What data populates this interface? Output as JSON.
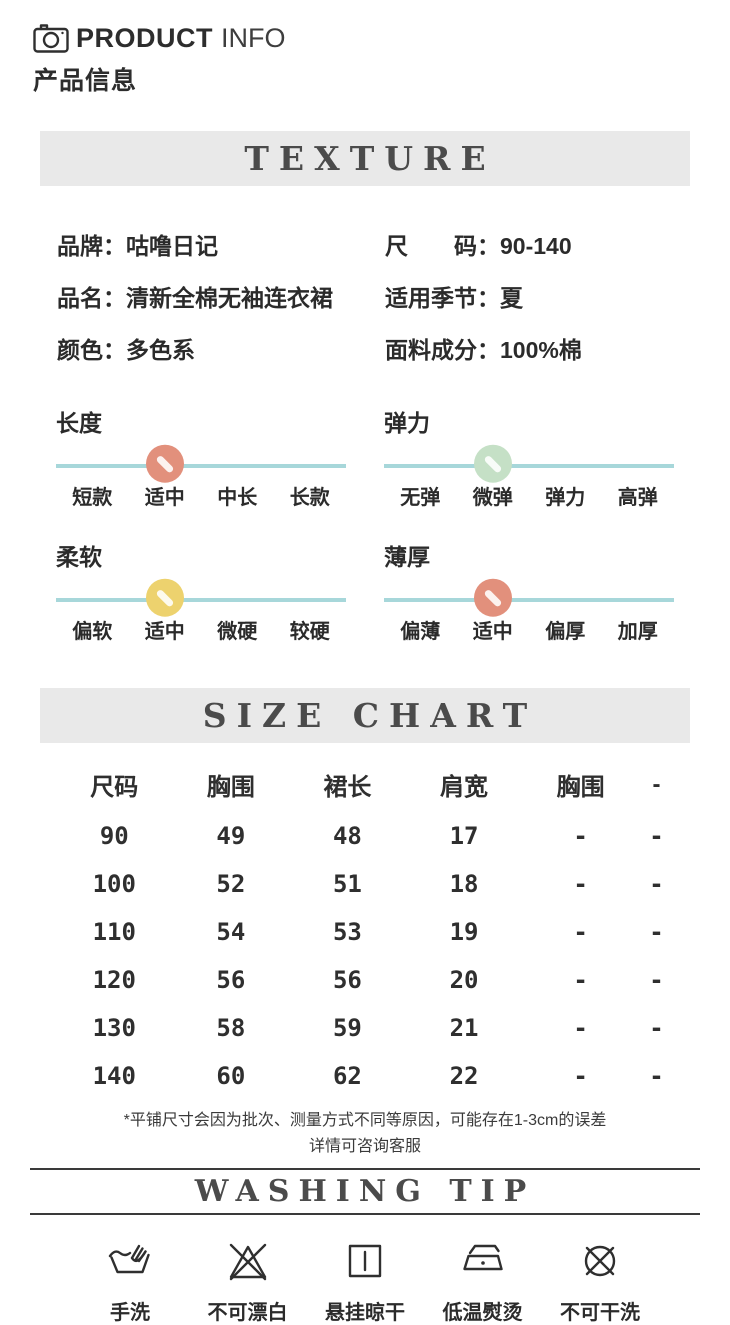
{
  "colors": {
    "track_teal": "#a7d7da",
    "banner_bg": "#e9e9e9",
    "banner_text": "#4b4b4b",
    "marker_salmon": "#e2907c",
    "marker_green": "#c5e0c6",
    "marker_yellow": "#edd26e"
  },
  "header": {
    "icon": "camera-icon",
    "title_bold": "PRODUCT",
    "title_light": "INFO",
    "subtitle": "产品信息"
  },
  "texture_section": {
    "banner": "TEXTURE",
    "details": [
      {
        "label": "品牌：",
        "value": "咕噜日记"
      },
      {
        "label": "尺　　码：",
        "value": "90-140"
      },
      {
        "label": "品名：",
        "value": "清新全棉无袖连衣裙"
      },
      {
        "label": "适用季节：",
        "value": "夏"
      },
      {
        "label": "颜色：",
        "value": "多色系"
      },
      {
        "label": "面料成分：",
        "value": "100%棉"
      }
    ],
    "sliders": [
      {
        "name": "长度",
        "options": [
          "短款",
          "适中",
          "中长",
          "长款"
        ],
        "selected": "适中",
        "selected_index": 1,
        "marker_color": "#e2907c"
      },
      {
        "name": "弹力",
        "options": [
          "无弹",
          "微弹",
          "弹力",
          "高弹"
        ],
        "selected": "微弹",
        "selected_index": 1,
        "marker_color": "#c5e0c6"
      },
      {
        "name": "柔软",
        "options": [
          "偏软",
          "适中",
          "微硬",
          "较硬"
        ],
        "selected": "适中",
        "selected_index": 1,
        "marker_color": "#edd26e"
      },
      {
        "name": "薄厚",
        "options": [
          "偏薄",
          "适中",
          "偏厚",
          "加厚"
        ],
        "selected": "适中",
        "selected_index": 1,
        "marker_color": "#e2907c"
      }
    ]
  },
  "size_chart": {
    "banner": "SIZE CHART",
    "columns": [
      "尺码",
      "胸围",
      "裙长",
      "肩宽",
      "胸围",
      "-"
    ],
    "rows": [
      [
        "90",
        "49",
        "48",
        "17",
        "-",
        "-"
      ],
      [
        "100",
        "52",
        "51",
        "18",
        "-",
        "-"
      ],
      [
        "110",
        "54",
        "53",
        "19",
        "-",
        "-"
      ],
      [
        "120",
        "56",
        "56",
        "20",
        "-",
        "-"
      ],
      [
        "130",
        "58",
        "59",
        "21",
        "-",
        "-"
      ],
      [
        "140",
        "60",
        "62",
        "22",
        "-",
        "-"
      ]
    ],
    "note_line1": "*平铺尺寸会因为批次、测量方式不同等原因，可能存在1-3cm的误差",
    "note_line2": "详情可咨询客服"
  },
  "washing": {
    "banner": "WASHING TIP",
    "items": [
      {
        "icon": "hand-wash-icon",
        "label": "手洗"
      },
      {
        "icon": "no-bleach-icon",
        "label": "不可漂白"
      },
      {
        "icon": "hang-dry-icon",
        "label": "悬挂晾干"
      },
      {
        "icon": "low-temp-iron-icon",
        "label": "低温熨烫"
      },
      {
        "icon": "no-dry-clean-icon",
        "label": "不可干洗"
      }
    ]
  }
}
